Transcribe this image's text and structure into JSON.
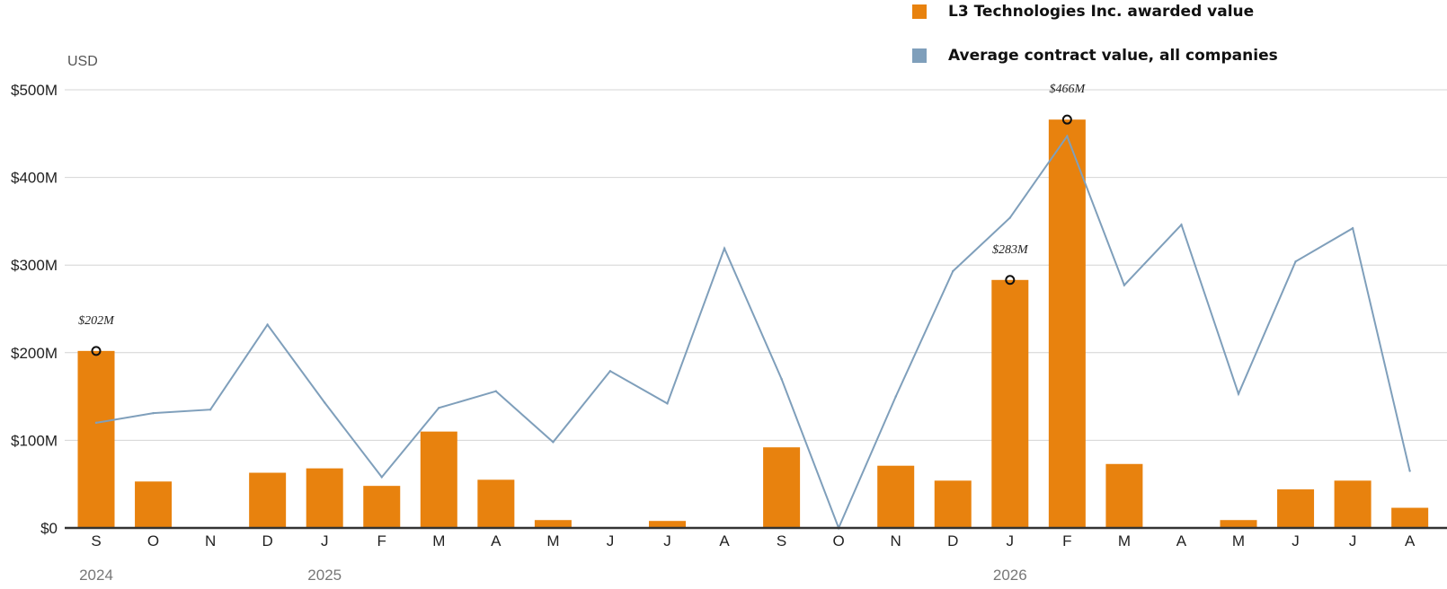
{
  "chart_data": {
    "type": "bar",
    "unit_label": "USD",
    "categories": [
      "S",
      "O",
      "N",
      "D",
      "J",
      "F",
      "M",
      "A",
      "M",
      "J",
      "J",
      "A",
      "S",
      "O",
      "N",
      "D",
      "J",
      "F",
      "M",
      "A",
      "M",
      "J",
      "J",
      "A"
    ],
    "year_labels": [
      {
        "index": 0,
        "label": "2024"
      },
      {
        "index": 4,
        "label": "2025"
      },
      {
        "index": 16,
        "label": "2026"
      }
    ],
    "y_ticks": [
      {
        "value": 0,
        "label": "$0"
      },
      {
        "value": 100,
        "label": "$100M"
      },
      {
        "value": 200,
        "label": "$200M"
      },
      {
        "value": 300,
        "label": "$300M"
      },
      {
        "value": 400,
        "label": "$400M"
      },
      {
        "value": 500,
        "label": "$500M"
      }
    ],
    "ylim": [
      0,
      500
    ],
    "grid": true,
    "legend_position": "top-right",
    "series": [
      {
        "name": "L3 Technologies Inc. awarded value",
        "type": "bar",
        "color": "#e8820e",
        "values": [
          202,
          53,
          0,
          63,
          68,
          48,
          110,
          55,
          9,
          0,
          8,
          0,
          92,
          0,
          71,
          54,
          283,
          466,
          73,
          0,
          9,
          44,
          54,
          23
        ]
      },
      {
        "name": "Average contract value, all companies",
        "type": "line",
        "color": "#7f9fbb",
        "values": [
          120,
          131,
          135,
          232,
          143,
          58,
          137,
          156,
          98,
          179,
          142,
          319,
          170,
          0,
          150,
          293,
          354,
          447,
          277,
          346,
          153,
          304,
          342,
          65
        ]
      }
    ],
    "annotations": [
      {
        "index": 0,
        "value": 202,
        "label": "$202M"
      },
      {
        "index": 16,
        "value": 283,
        "label": "$283M"
      },
      {
        "index": 17,
        "value": 466,
        "label": "$466M"
      }
    ]
  }
}
